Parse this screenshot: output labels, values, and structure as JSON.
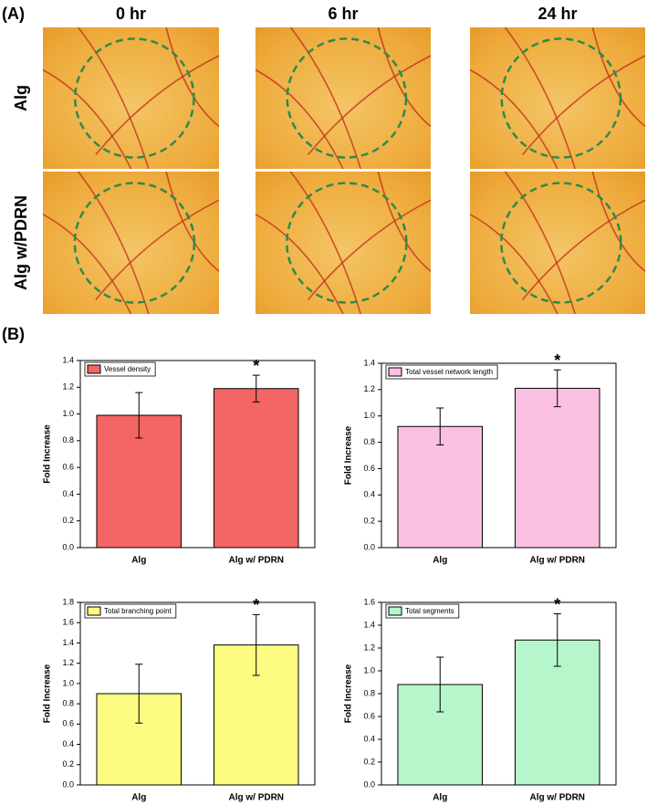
{
  "panel_a": {
    "label": "(A)",
    "columns": [
      "0 hr",
      "6 hr",
      "24 hr"
    ],
    "rows": [
      "Alg",
      "Alg w/PDRN"
    ]
  },
  "panel_b_label": "(B)",
  "chart_data": [
    {
      "type": "bar",
      "categories": [
        "Alg",
        "Alg w/ PDRN"
      ],
      "ylabel": "Fold Increase",
      "series": [
        {
          "name": "Vessel density",
          "color": "#f46565",
          "values": [
            0.99,
            1.19
          ],
          "errors": [
            0.17,
            0.1
          ]
        }
      ],
      "annotations": [
        "*"
      ],
      "legend": "upper left",
      "ylim": [
        0,
        1.4
      ],
      "yticks": [
        {
          "value": 0,
          "label": "0.0"
        },
        {
          "value": 0.2,
          "label": "0.2"
        },
        {
          "value": 0.4,
          "label": "0.4"
        },
        {
          "value": 0.6,
          "label": "0.6"
        },
        {
          "value": 0.8,
          "label": "0.8"
        },
        {
          "value": 1,
          "label": "1.0"
        },
        {
          "value": 1.2,
          "label": "1.2"
        },
        {
          "value": 1.4,
          "label": "1.4"
        }
      ]
    },
    {
      "type": "bar",
      "categories": [
        "Alg",
        "Alg w/ PDRN"
      ],
      "ylabel": "Fold Increase",
      "series": [
        {
          "name": "Total vessel network length",
          "color": "#fbbfe2",
          "values": [
            0.92,
            1.21
          ],
          "errors": [
            0.14,
            0.14
          ]
        }
      ],
      "annotations": [
        "*"
      ],
      "legend": "upper left",
      "ylim": [
        0,
        1.4
      ],
      "yticks": [
        {
          "value": 0,
          "label": "0.0"
        },
        {
          "value": 0.2,
          "label": "0.2"
        },
        {
          "value": 0.4,
          "label": "0.4"
        },
        {
          "value": 0.6,
          "label": "0.6"
        },
        {
          "value": 0.8,
          "label": "0.8"
        },
        {
          "value": 1,
          "label": "1.0"
        },
        {
          "value": 1.2,
          "label": "1.2"
        },
        {
          "value": 1.4,
          "label": "1.4"
        }
      ]
    },
    {
      "type": "bar",
      "categories": [
        "Alg",
        "Alg w/ PDRN"
      ],
      "ylabel": "Fold Increase",
      "series": [
        {
          "name": "Total branching point",
          "color": "#fcfc82",
          "values": [
            0.9,
            1.38
          ],
          "errors": [
            0.29,
            0.3
          ]
        }
      ],
      "annotations": [
        "*"
      ],
      "legend": "upper left",
      "ylim": [
        0,
        1.8
      ],
      "yticks": [
        {
          "value": 0,
          "label": "0.0"
        },
        {
          "value": 0.2,
          "label": "0.2"
        },
        {
          "value": 0.4,
          "label": "0.4"
        },
        {
          "value": 0.6,
          "label": "0.6"
        },
        {
          "value": 0.8,
          "label": "0.8"
        },
        {
          "value": 1,
          "label": "1.0"
        },
        {
          "value": 1.2,
          "label": "1.2"
        },
        {
          "value": 1.4,
          "label": "1.4"
        },
        {
          "value": 1.6,
          "label": "1.6"
        },
        {
          "value": 1.8,
          "label": "1.8"
        }
      ]
    },
    {
      "type": "bar",
      "categories": [
        "Alg",
        "Alg w/ PDRN"
      ],
      "ylabel": "Fold Increase",
      "series": [
        {
          "name": "Total segments",
          "color": "#b5f6ca",
          "values": [
            0.88,
            1.27
          ],
          "errors": [
            0.24,
            0.23
          ]
        }
      ],
      "annotations": [
        "*"
      ],
      "legend": "upper left",
      "ylim": [
        0,
        1.6
      ],
      "yticks": [
        {
          "value": 0,
          "label": "0.0"
        },
        {
          "value": 0.2,
          "label": "0.2"
        },
        {
          "value": 0.4,
          "label": "0.4"
        },
        {
          "value": 0.6,
          "label": "0.6"
        },
        {
          "value": 0.8,
          "label": "0.8"
        },
        {
          "value": 1,
          "label": "1.0"
        },
        {
          "value": 1.2,
          "label": "1.2"
        },
        {
          "value": 1.4,
          "label": "1.4"
        },
        {
          "value": 1.6,
          "label": "1.6"
        }
      ]
    }
  ]
}
